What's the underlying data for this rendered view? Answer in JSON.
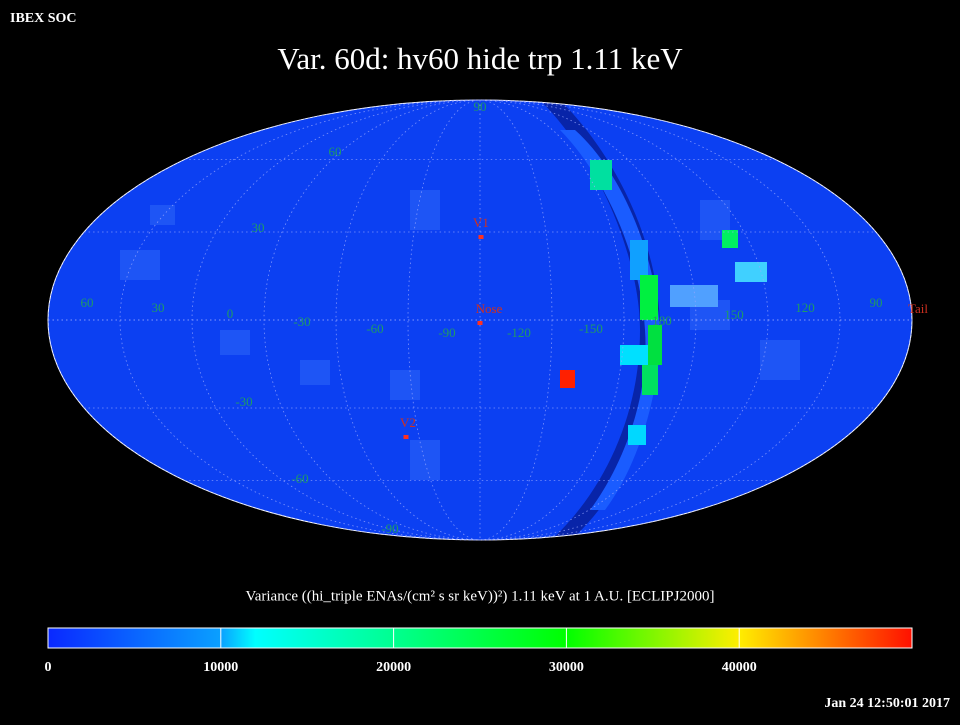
{
  "header": {
    "label": "IBEX SOC"
  },
  "title": "Var. 60d: hv60 hide trp 1.11 keV",
  "map": {
    "latitude_labels": [
      "90",
      "60",
      "30",
      "-30",
      "-60",
      "-90"
    ],
    "longitude_labels": [
      "60",
      "30",
      "0",
      "-30",
      "-60",
      "-90",
      "-120",
      "-150",
      "180",
      "150",
      "120",
      "90"
    ],
    "markers": [
      "V1",
      "Nose",
      "V2",
      "Tail"
    ]
  },
  "colorbar": {
    "label": "Variance ((hi_triple ENAs/(cm² s sr keV))²) 1.11 keV at 1 A.U. [ECLIPJ2000]",
    "range": [
      0,
      50000
    ],
    "ticks": [
      0,
      10000,
      20000,
      30000,
      40000
    ]
  },
  "timestamp": "Jan 24 12:50:01 2017"
}
